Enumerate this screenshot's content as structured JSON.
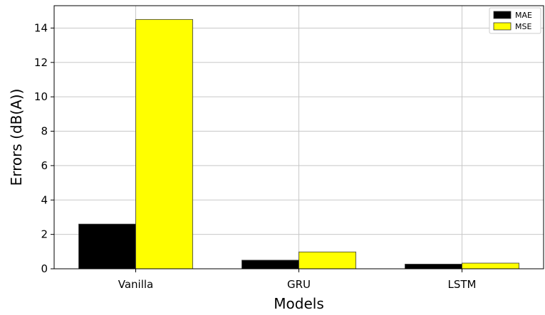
{
  "chart_data": {
    "type": "bar",
    "title": "",
    "xlabel": "Models",
    "ylabel": "Errors (dB(A))",
    "categories": [
      "Vanilla",
      "GRU",
      "LSTM"
    ],
    "series": [
      {
        "name": "MAE",
        "values": [
          2.6,
          0.5,
          0.27
        ],
        "color": "#000000"
      },
      {
        "name": "MSE",
        "values": [
          14.5,
          0.98,
          0.33
        ],
        "color": "#ffff00"
      }
    ],
    "ylim": [
      0,
      15.3
    ],
    "yticks": [
      0,
      2,
      4,
      6,
      8,
      10,
      12,
      14
    ],
    "grid": true,
    "legend": "top-right"
  }
}
